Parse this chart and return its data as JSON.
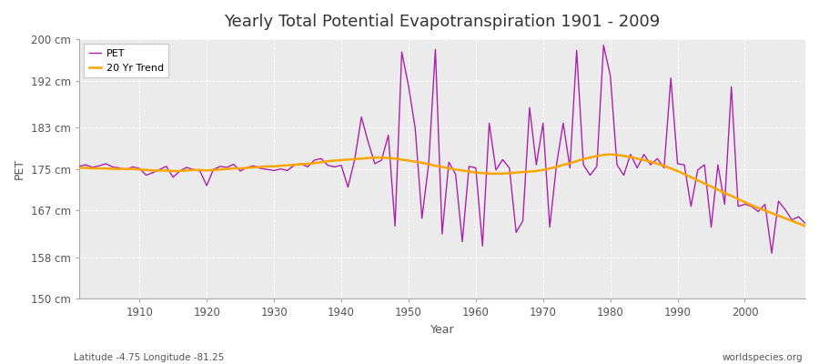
{
  "title": "Yearly Total Potential Evapotranspiration 1901 - 2009",
  "ylabel": "PET",
  "xlabel": "Year",
  "footnote_left": "Latitude -4.75 Longitude -81.25",
  "footnote_right": "worldspecies.org",
  "ylim": [
    150,
    200
  ],
  "yticks": [
    150,
    158,
    167,
    175,
    183,
    192,
    200
  ],
  "ytick_labels": [
    "150 cm",
    "158 cm",
    "167 cm",
    "175 cm",
    "183 cm",
    "192 cm",
    "200 cm"
  ],
  "xlim": [
    1901,
    2009
  ],
  "xticks": [
    1910,
    1920,
    1930,
    1940,
    1950,
    1960,
    1970,
    1980,
    1990,
    2000
  ],
  "fig_bg_color": "#ffffff",
  "plot_bg_color": "#ebebeb",
  "pet_color": "#aa22aa",
  "trend_color": "#FFA500",
  "pet_linewidth": 1.0,
  "trend_linewidth": 1.8,
  "title_fontsize": 13,
  "years": [
    1901,
    1902,
    1903,
    1904,
    1905,
    1906,
    1907,
    1908,
    1909,
    1910,
    1911,
    1912,
    1913,
    1914,
    1915,
    1916,
    1917,
    1918,
    1919,
    1920,
    1921,
    1922,
    1923,
    1924,
    1925,
    1926,
    1927,
    1928,
    1929,
    1930,
    1931,
    1932,
    1933,
    1934,
    1935,
    1936,
    1937,
    1938,
    1939,
    1940,
    1941,
    1942,
    1943,
    1944,
    1945,
    1946,
    1947,
    1948,
    1949,
    1950,
    1951,
    1952,
    1953,
    1954,
    1955,
    1956,
    1957,
    1958,
    1959,
    1960,
    1961,
    1962,
    1963,
    1964,
    1965,
    1966,
    1967,
    1968,
    1969,
    1970,
    1971,
    1972,
    1973,
    1974,
    1975,
    1976,
    1977,
    1978,
    1979,
    1980,
    1981,
    1982,
    1983,
    1984,
    1985,
    1986,
    1987,
    1988,
    1989,
    1990,
    1991,
    1992,
    1993,
    1994,
    1995,
    1996,
    1997,
    1998,
    1999,
    2000,
    2001,
    2002,
    2003,
    2004,
    2005,
    2006,
    2007,
    2008,
    2009
  ],
  "pet_values": [
    175.5,
    175.8,
    175.3,
    175.6,
    176.0,
    175.4,
    175.2,
    174.9,
    175.4,
    175.1,
    173.8,
    174.3,
    174.9,
    175.5,
    173.4,
    174.6,
    175.3,
    174.9,
    174.6,
    171.8,
    174.9,
    175.5,
    175.3,
    175.9,
    174.6,
    175.3,
    175.6,
    175.1,
    174.9,
    174.7,
    175.0,
    174.7,
    175.7,
    176.0,
    175.4,
    176.7,
    177.0,
    175.7,
    175.4,
    175.7,
    171.5,
    176.8,
    185.0,
    180.2,
    176.0,
    176.7,
    181.5,
    164.0,
    197.5,
    191.0,
    182.8,
    165.5,
    176.0,
    198.0,
    162.5,
    176.3,
    174.0,
    161.0,
    175.5,
    175.2,
    160.2,
    183.8,
    174.8,
    176.8,
    175.2,
    162.8,
    165.0,
    186.8,
    175.8,
    183.8,
    163.8,
    175.8,
    183.8,
    175.2,
    197.8,
    175.8,
    173.8,
    175.5,
    198.8,
    193.0,
    175.8,
    173.8,
    177.8,
    175.2,
    177.8,
    175.8,
    177.0,
    175.2,
    192.5,
    176.0,
    175.8,
    167.8,
    174.8,
    175.8,
    163.8,
    175.8,
    168.2,
    190.8,
    167.8,
    168.2,
    167.8,
    166.8,
    168.2,
    158.8,
    168.8,
    167.2,
    165.2,
    165.8,
    164.5
  ],
  "trend_values": [
    175.2,
    175.2,
    175.1,
    175.1,
    175.1,
    175.0,
    175.0,
    175.0,
    175.0,
    174.9,
    174.8,
    174.7,
    174.7,
    174.7,
    174.6,
    174.6,
    174.7,
    174.8,
    174.8,
    174.7,
    174.8,
    174.9,
    175.0,
    175.1,
    175.1,
    175.2,
    175.3,
    175.4,
    175.5,
    175.5,
    175.6,
    175.7,
    175.8,
    175.9,
    176.0,
    176.1,
    176.3,
    176.5,
    176.6,
    176.7,
    176.8,
    176.9,
    177.0,
    177.1,
    177.2,
    177.2,
    177.1,
    177.0,
    176.8,
    176.6,
    176.4,
    176.2,
    175.9,
    175.6,
    175.4,
    175.1,
    174.9,
    174.7,
    174.5,
    174.3,
    174.2,
    174.1,
    174.1,
    174.1,
    174.2,
    174.3,
    174.4,
    174.5,
    174.6,
    174.8,
    175.1,
    175.4,
    175.8,
    176.1,
    176.5,
    176.9,
    177.2,
    177.5,
    177.7,
    177.8,
    177.7,
    177.5,
    177.3,
    177.0,
    176.7,
    176.4,
    176.0,
    175.6,
    175.1,
    174.6,
    174.0,
    173.4,
    172.8,
    172.2,
    171.6,
    171.0,
    170.4,
    169.8,
    169.2,
    168.6,
    168.0,
    167.5,
    167.0,
    166.5,
    166.0,
    165.5,
    165.0,
    164.5,
    164.0
  ]
}
